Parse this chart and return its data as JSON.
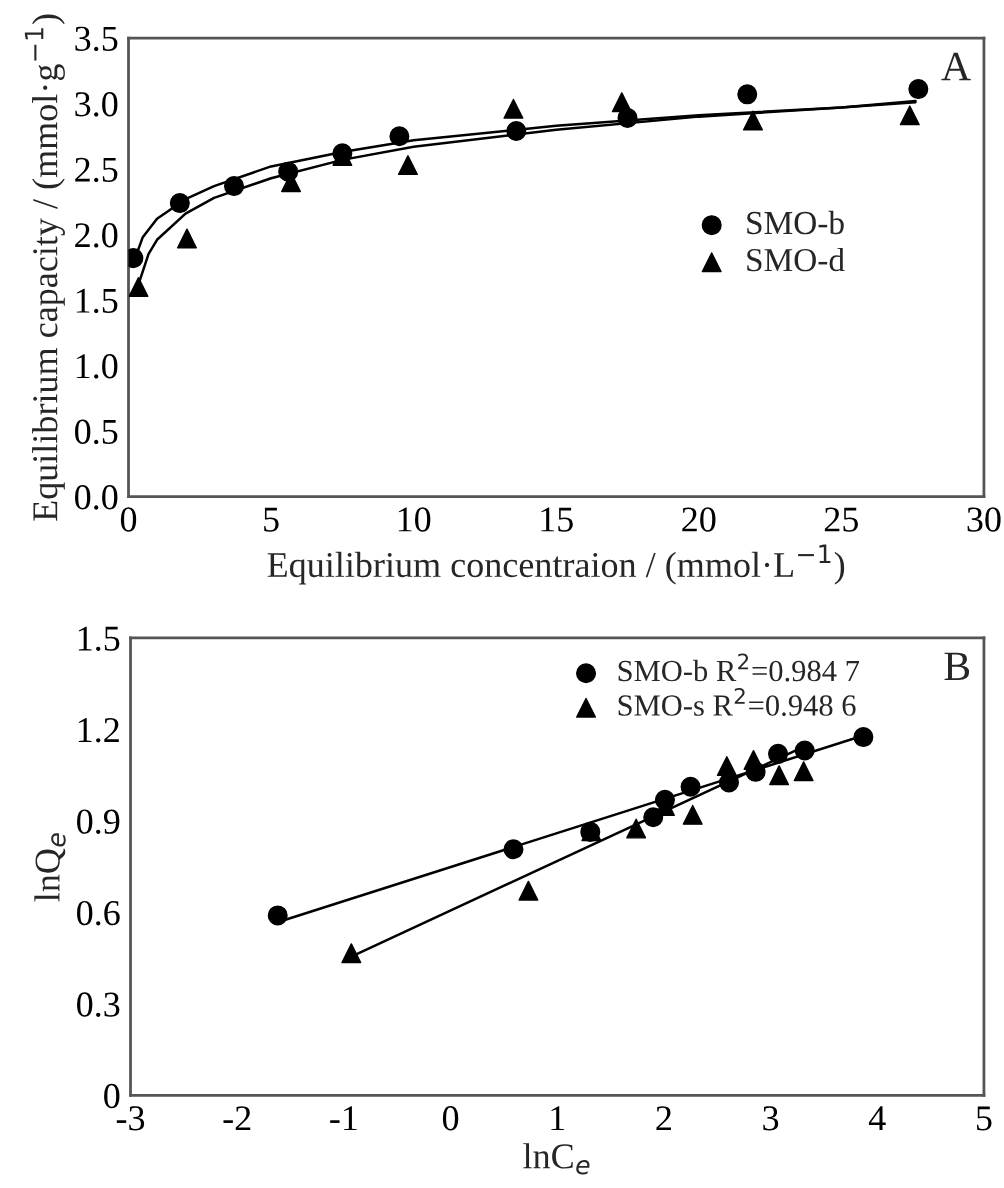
{
  "chart_data": [
    {
      "type": "scatter",
      "xlabel": "Equilibrium concentraion / (mmol·L$^{−1}$)",
      "ylabel": "Equilibrium capacity / (mmol·g$^{−1}$)",
      "annotations": [
        "A"
      ],
      "xlim": [
        0,
        30
      ],
      "xticks": [
        0,
        5,
        10,
        15,
        20,
        25,
        30
      ],
      "ylim": [
        0,
        3.5
      ],
      "yticks": [
        {
          "value": 0,
          "label": "0.0"
        },
        {
          "value": 0.5,
          "label": "0.5"
        },
        {
          "value": 1,
          "label": "1.0"
        },
        {
          "value": 1.5,
          "label": "1.5"
        },
        {
          "value": 2,
          "label": "2.0"
        },
        {
          "value": 2.5,
          "label": "2.5"
        },
        {
          "value": 3,
          "label": "3.0"
        },
        {
          "value": 3.5,
          "label": "3.5"
        }
      ],
      "grid": false,
      "legend": "right",
      "series": [
        {
          "type": "scatter",
          "name": "SMO-b",
          "color": "#000000",
          "marker": "circle",
          "x": [
            0.17,
            1.8,
            3.7,
            5.6,
            7.5,
            9.5,
            13.6,
            17.5,
            21.7,
            27.7
          ],
          "values": [
            1.82,
            2.24,
            2.37,
            2.48,
            2.62,
            2.75,
            2.79,
            2.89,
            3.07,
            3.11
          ]
        },
        {
          "type": "scatter",
          "name": "SMO-d",
          "color": "#000000",
          "marker": "triangle",
          "x": [
            0.35,
            2.05,
            5.7,
            7.5,
            9.8,
            13.5,
            17.3,
            21.9,
            27.4
          ],
          "values": [
            1.6,
            1.97,
            2.4,
            2.6,
            2.53,
            2.96,
            3.01,
            2.87,
            2.91
          ]
        },
        {
          "type": "line",
          "color": "#000000",
          "line_style": "solid",
          "x": [
            0.2,
            0.5,
            1,
            2,
            3,
            5,
            7.5,
            10,
            15,
            20,
            25,
            27.6
          ],
          "values": [
            1.8,
            1.98,
            2.12,
            2.27,
            2.37,
            2.52,
            2.63,
            2.72,
            2.83,
            2.91,
            2.97,
            3.01
          ]
        },
        {
          "type": "line",
          "color": "#000000",
          "line_style": "solid",
          "x": [
            0.35,
            0.7,
            1,
            2,
            3,
            5,
            7.5,
            10,
            15,
            20,
            25,
            27.6
          ],
          "values": [
            1.62,
            1.85,
            1.96,
            2.16,
            2.28,
            2.43,
            2.57,
            2.67,
            2.8,
            2.9,
            2.97,
            3.02
          ]
        }
      ]
    },
    {
      "type": "scatter",
      "xlabel": "lnC$_{e}$",
      "ylabel": "lnQ$_{e}$",
      "annotations": [
        "B"
      ],
      "xlim": [
        -3,
        5
      ],
      "xticks": [
        {
          "value": -3,
          "label": "-3"
        },
        {
          "value": -2,
          "label": "-2"
        },
        {
          "value": -1,
          "label": "-1"
        },
        0,
        1,
        2,
        3,
        4,
        5
      ],
      "ylim": [
        0,
        1.5
      ],
      "yticks": [
        0,
        0.3,
        0.6,
        0.9,
        1.2,
        1.5
      ],
      "grid": false,
      "legend": "top right",
      "series": [
        {
          "type": "scatter",
          "name": "SMO-b R$^{2}$=0.984 7",
          "color": "#000000",
          "marker": "circle",
          "x": [
            -1.62,
            0.59,
            1.31,
            1.9,
            2.01,
            2.25,
            2.61,
            2.86,
            3.07,
            3.32,
            3.87
          ],
          "values": [
            0.59,
            0.807,
            0.864,
            0.912,
            0.969,
            1.012,
            1.026,
            1.061,
            1.12,
            1.131,
            1.175
          ]
        },
        {
          "type": "scatter",
          "name": "SMO-s R$^{2}$=0.948 6",
          "color": "#000000",
          "marker": "triangle",
          "x": [
            -0.93,
            0.73,
            1.32,
            1.74,
            2.01,
            2.27,
            2.59,
            2.84,
            3.08,
            3.31
          ],
          "values": [
            0.466,
            0.671,
            0.866,
            0.875,
            0.949,
            0.92,
            1.08,
            1.1,
            1.05,
            1.063
          ]
        },
        {
          "type": "line",
          "color": "#000000",
          "line_style": "solid",
          "x": [
            -1.6,
            3.87
          ],
          "values": [
            0.57,
            1.18
          ]
        },
        {
          "type": "line",
          "color": "#000000",
          "line_style": "solid",
          "x": [
            -0.93,
            3.34
          ],
          "values": [
            0.455,
            1.148
          ]
        }
      ]
    }
  ]
}
